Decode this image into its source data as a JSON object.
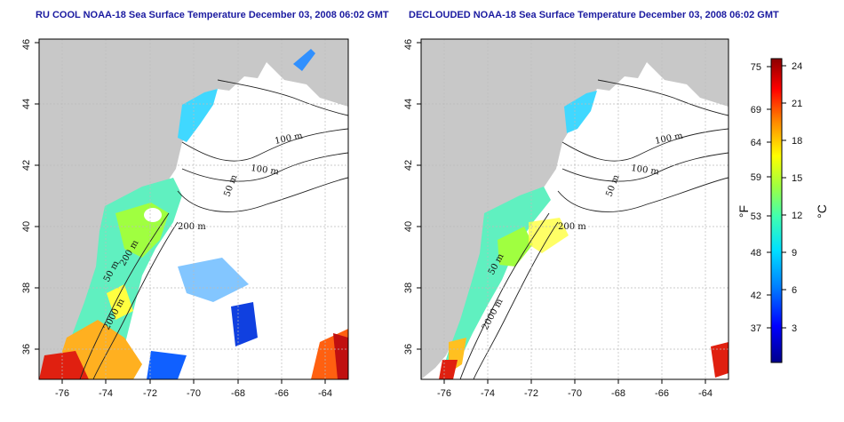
{
  "maps": [
    {
      "title": "RU COOL NOAA-18 Sea Surface Temperature December 03, 2008 06:02 GMT",
      "lon_ticks": [
        "-76",
        "-74",
        "-72",
        "-70",
        "-68",
        "-66",
        "-64"
      ],
      "lat_ticks": [
        "36",
        "38",
        "40",
        "42",
        "44",
        "46"
      ],
      "contours": [
        "100 m",
        "100 m",
        "50 m",
        "200 m",
        "50 m",
        "200 m",
        "2000 m"
      ]
    },
    {
      "title": "DECLOUDED NOAA-18 Sea Surface Temperature December 03, 2008 06:02 GMT",
      "lon_ticks": [
        "-76",
        "-74",
        "-72",
        "-70",
        "-68",
        "-66",
        "-64"
      ],
      "lat_ticks": [
        "36",
        "38",
        "40",
        "42",
        "44",
        "46"
      ],
      "contours": [
        "100 m",
        "100 m",
        "50 m",
        "200 m",
        "50 m",
        "2000 m"
      ]
    }
  ],
  "colorbar": {
    "f_unit": "°F",
    "c_unit": "°C",
    "f_ticks": [
      "75",
      "69",
      "64",
      "59",
      "53",
      "48",
      "42",
      "37"
    ],
    "c_ticks": [
      "24",
      "21",
      "18",
      "15",
      "12",
      "9",
      "6",
      "3"
    ]
  },
  "colors": {
    "land": "#c8c8c8",
    "title": "#1a1aa0",
    "scale": [
      "#00008b",
      "#0000ff",
      "#0080ff",
      "#00e0ff",
      "#40ffb0",
      "#a0ff40",
      "#ffff00",
      "#ff8000",
      "#ff0000",
      "#8b0000"
    ]
  }
}
